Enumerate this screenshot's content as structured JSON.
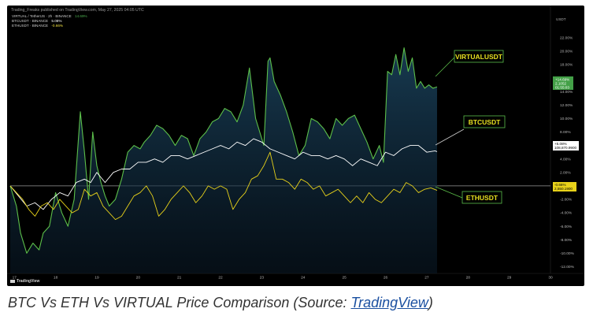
{
  "header": {
    "published": "Trading_Freaks published on TradingView.com, May 27, 2025 04:05 UTC"
  },
  "legend": [
    {
      "label": "VIRTUAL / TetherUS · 2h · BINANCE",
      "change": "14.69%",
      "color": "#4caf50"
    },
    {
      "label": "BTCUSDT · BINANCE",
      "change": "5.08%",
      "color": "#ffffff"
    },
    {
      "label": "ETHUSDT · BINANCE",
      "change": "-0.66%",
      "color": "#f0e040"
    }
  ],
  "price_tags": {
    "virtual": {
      "pct": "+14.69%",
      "price": "2.1052",
      "sub": "01:55:03"
    },
    "btc": {
      "pct": "+5.08%",
      "price": "108,870.9900"
    },
    "eth": {
      "pct": "-0.66%",
      "price": "2,550.1900"
    }
  },
  "scale_label": "USDT",
  "line_labels": {
    "virtual": "VIRTUALUSDT",
    "btc": "BTCUSDT",
    "eth": "ETHUSDT"
  },
  "footer": {
    "brand": "TradingView"
  },
  "caption": {
    "prefix": "BTC Vs ETH Vs VIRTUAL Price Comparison (Source: ",
    "link": "TradingView",
    "suffix": ")"
  },
  "chart_data": {
    "type": "line",
    "ylim": [
      -12,
      24
    ],
    "y_ticks": [
      "22.00%",
      "20.00%",
      "18.00%",
      "16.00%",
      "14.00%",
      "12.00%",
      "10.00%",
      "8.00%",
      "6.00%",
      "4.00%",
      "2.00%",
      "0.00%",
      "-2.00%",
      "-4.00%",
      "-6.00%",
      "-8.00%",
      "-10.00%",
      "-12.00%"
    ],
    "y_tick_values": [
      22,
      20,
      18,
      16,
      14,
      12,
      10,
      8,
      6,
      4,
      2,
      0,
      -2,
      -4,
      -6,
      -8,
      -10,
      -12
    ],
    "x_ticks": [
      "17",
      "18",
      "19",
      "20",
      "21",
      "22",
      "23",
      "24",
      "25",
      "26",
      "27",
      "28",
      "29",
      "30"
    ],
    "xlim": [
      16.9,
      30.0
    ],
    "series": [
      {
        "name": "VIRTUALUSDT",
        "color": "#5cbf4a",
        "x": [
          16.9,
          17.05,
          17.15,
          17.3,
          17.45,
          17.6,
          17.7,
          17.85,
          18.0,
          18.15,
          18.3,
          18.45,
          18.6,
          18.7,
          18.8,
          18.9,
          19.0,
          19.1,
          19.2,
          19.3,
          19.45,
          19.6,
          19.75,
          19.9,
          20.05,
          20.15,
          20.3,
          20.45,
          20.6,
          20.75,
          20.9,
          21.05,
          21.2,
          21.35,
          21.5,
          21.65,
          21.8,
          21.95,
          22.1,
          22.25,
          22.4,
          22.55,
          22.7,
          22.85,
          22.95,
          23.05,
          23.15,
          23.2,
          23.3,
          23.45,
          23.6,
          23.75,
          23.9,
          24.05,
          24.2,
          24.35,
          24.5,
          24.65,
          24.8,
          24.95,
          25.1,
          25.25,
          25.4,
          25.55,
          25.7,
          25.85,
          25.95,
          26.05,
          26.15,
          26.25,
          26.35,
          26.45,
          26.55,
          26.65,
          26.75,
          26.85,
          26.95,
          27.05,
          27.15,
          27.25
        ],
        "y": [
          0,
          -3,
          -7,
          -10,
          -8.5,
          -9.5,
          -7,
          -6,
          -1,
          -4,
          -6,
          -2,
          11,
          5,
          -2,
          8,
          3,
          0.5,
          -1.5,
          -3,
          -2,
          1,
          5,
          6,
          5.5,
          6.5,
          7.5,
          9,
          8.5,
          7.5,
          6,
          7.5,
          7,
          4.5,
          7,
          8,
          9.5,
          10,
          11.5,
          11,
          9.5,
          12,
          17.5,
          10,
          8,
          6,
          18.5,
          19,
          15.5,
          13.5,
          11,
          8,
          4.5,
          6,
          10,
          9.5,
          8.5,
          7,
          10,
          9,
          10,
          10.5,
          8.5,
          6.5,
          4,
          6,
          3.5,
          17,
          16.5,
          19.5,
          16.5,
          20.5,
          17,
          19,
          14.5,
          15.5,
          14.5,
          15,
          14.5,
          14.7
        ]
      },
      {
        "name": "BTCUSDT",
        "color": "#ffffff",
        "x": [
          16.9,
          17.1,
          17.3,
          17.5,
          17.7,
          17.9,
          18.1,
          18.3,
          18.5,
          18.7,
          18.85,
          19.0,
          19.2,
          19.4,
          19.6,
          19.8,
          20.0,
          20.2,
          20.4,
          20.6,
          20.8,
          21.0,
          21.2,
          21.4,
          21.6,
          21.8,
          22.0,
          22.2,
          22.4,
          22.6,
          22.8,
          23.0,
          23.2,
          23.4,
          23.6,
          23.8,
          24.0,
          24.2,
          24.4,
          24.6,
          24.8,
          25.0,
          25.2,
          25.4,
          25.6,
          25.8,
          26.0,
          26.2,
          26.4,
          26.6,
          26.8,
          27.0,
          27.2,
          27.25
        ],
        "y": [
          0,
          -1.5,
          -3,
          -2.5,
          -3.5,
          -2,
          -1,
          -1.5,
          0.5,
          1,
          0.5,
          2,
          0.5,
          2,
          2.5,
          2.5,
          3.5,
          3.5,
          4,
          3.5,
          4.5,
          4.5,
          4,
          4.5,
          5,
          5.5,
          6,
          5.5,
          6.5,
          6,
          7,
          6.5,
          5.5,
          5,
          4.5,
          4,
          5,
          4.5,
          4.5,
          4,
          4.5,
          4,
          3,
          4,
          3.5,
          3,
          5,
          4.5,
          5.5,
          6,
          6,
          5,
          5.2,
          5.08
        ]
      },
      {
        "name": "ETHUSDT",
        "color": "#e8d21a",
        "x": [
          16.9,
          17.05,
          17.2,
          17.35,
          17.5,
          17.65,
          17.8,
          17.95,
          18.1,
          18.25,
          18.4,
          18.55,
          18.7,
          18.85,
          19.0,
          19.15,
          19.3,
          19.45,
          19.6,
          19.75,
          19.9,
          20.05,
          20.2,
          20.35,
          20.5,
          20.65,
          20.8,
          20.95,
          21.1,
          21.25,
          21.4,
          21.55,
          21.7,
          21.85,
          22.0,
          22.15,
          22.3,
          22.45,
          22.6,
          22.75,
          22.9,
          23.05,
          23.2,
          23.35,
          23.5,
          23.65,
          23.8,
          23.95,
          24.1,
          24.25,
          24.4,
          24.55,
          24.7,
          24.85,
          25.0,
          25.15,
          25.3,
          25.45,
          25.6,
          25.75,
          25.9,
          26.05,
          26.2,
          26.35,
          26.5,
          26.65,
          26.8,
          26.95,
          27.1,
          27.25
        ],
        "y": [
          0,
          -1,
          -2,
          -3.5,
          -4.5,
          -3,
          -2.5,
          -3.5,
          -2,
          -3,
          -4,
          -3.5,
          -0.5,
          -1.5,
          -1,
          -3,
          -4,
          -5,
          -4.5,
          -3,
          -1.5,
          -1,
          0,
          -1.5,
          -4.5,
          -3.5,
          -2,
          -1,
          0,
          -1,
          -2.5,
          -1.5,
          0,
          -0.5,
          0,
          -0.5,
          -3.5,
          -2,
          -1,
          1,
          1.5,
          3,
          5,
          1,
          1,
          0.5,
          -0.5,
          1,
          0.5,
          -0.5,
          0,
          -1.5,
          -1,
          -0.5,
          -1.5,
          -2.5,
          -1.5,
          -2.5,
          -1,
          -2,
          -2.5,
          -1.5,
          -0.5,
          -1,
          0.5,
          0,
          -1,
          -0.5,
          -0.3,
          -0.66
        ]
      }
    ]
  }
}
